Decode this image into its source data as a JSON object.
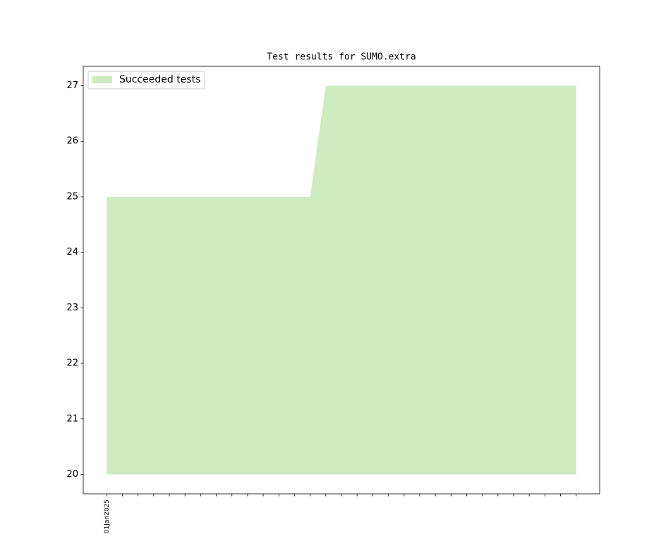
{
  "chart_data": {
    "type": "area",
    "title": "Test results for SUMO.extra",
    "categories": [
      "01Jan2025",
      null,
      null,
      null,
      null,
      null,
      null,
      null,
      null,
      null,
      null,
      null,
      null,
      null,
      null,
      null,
      null,
      null,
      null,
      null,
      null,
      null,
      null,
      null,
      null,
      null,
      null,
      null,
      null,
      null,
      null
    ],
    "series": [
      {
        "name": "Succeeded tests",
        "color": "#ceecbf",
        "values": [
          25,
          25,
          25,
          25,
          25,
          25,
          25,
          25,
          25,
          25,
          25,
          25,
          25,
          25,
          27,
          27,
          27,
          27,
          27,
          27,
          27,
          27,
          27,
          27,
          27,
          27,
          27,
          27,
          27,
          27,
          27
        ]
      }
    ],
    "base": 20,
    "ylim": [
      19.65,
      27.35
    ],
    "yticks": [
      20,
      21,
      22,
      23,
      24,
      25,
      26,
      27
    ],
    "grid": false,
    "legend": "upper left"
  }
}
